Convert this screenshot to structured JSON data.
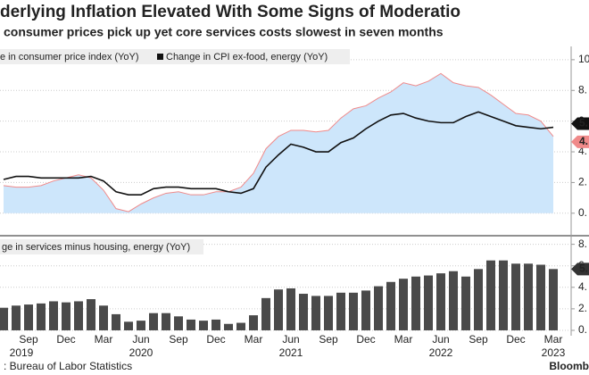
{
  "header": {
    "title": "derlying Inflation Elevated With Some Signs of Moderatio",
    "subtitle": "consumer prices pick up yet core services costs slowest in seven months"
  },
  "footer": {
    "source": ": Bureau of Labor Statistics",
    "brand": "Bloomb"
  },
  "chart_data": [
    {
      "type": "line",
      "series": [
        {
          "name": "e in consumer price index (YoY)",
          "color": "#f08a8a",
          "fill": "#cde6fb",
          "end_label": "4.",
          "values": [
            1.8,
            1.7,
            1.7,
            1.8,
            2.1,
            2.3,
            2.5,
            2.3,
            1.5,
            0.3,
            0.1,
            0.6,
            1.0,
            1.3,
            1.4,
            1.2,
            1.2,
            1.4,
            1.4,
            1.7,
            2.6,
            4.2,
            5.0,
            5.4,
            5.4,
            5.3,
            5.4,
            6.2,
            6.8,
            7.0,
            7.5,
            7.9,
            8.5,
            8.3,
            8.6,
            9.1,
            8.5,
            8.3,
            8.2,
            7.7,
            7.1,
            6.5,
            6.4,
            6.0,
            5.0
          ]
        },
        {
          "name": "Change in CPI ex-food, energy (YoY)",
          "color": "#111111",
          "end_label": "5.",
          "values": [
            2.2,
            2.4,
            2.4,
            2.3,
            2.3,
            2.3,
            2.3,
            2.4,
            2.1,
            1.4,
            1.2,
            1.2,
            1.6,
            1.7,
            1.7,
            1.6,
            1.6,
            1.6,
            1.4,
            1.3,
            1.6,
            3.0,
            3.8,
            4.5,
            4.3,
            4.0,
            4.0,
            4.6,
            4.9,
            5.5,
            6.0,
            6.4,
            6.5,
            6.2,
            6.0,
            5.9,
            5.9,
            6.3,
            6.6,
            6.3,
            6.0,
            5.7,
            5.6,
            5.5,
            5.6
          ]
        }
      ],
      "ylim": [
        -1,
        10.4
      ],
      "yticks": [
        {
          "value": 0,
          "label": "0."
        },
        {
          "value": 2,
          "label": "2."
        },
        {
          "value": 4,
          "label": "4."
        },
        {
          "value": 6,
          "label": "6"
        },
        {
          "value": 8,
          "label": "8."
        },
        {
          "value": 10,
          "label": "10"
        }
      ],
      "grid": true
    },
    {
      "type": "bar",
      "name": "ge in services minus housing, energy (YoY)",
      "color": "#4a4a4a",
      "end_label": "5.",
      "categories": [
        null,
        null,
        "Sep",
        null,
        null,
        "Dec",
        null,
        null,
        "Mar",
        null,
        null,
        "Jun",
        null,
        null,
        "Sep",
        null,
        null,
        "Dec",
        null,
        null,
        "Mar",
        null,
        null,
        "Jun",
        null,
        null,
        "Sep",
        null,
        null,
        "Dec",
        null,
        null,
        "Mar",
        null,
        null,
        "Jun",
        null,
        null,
        "Sep",
        null,
        null,
        "Dec",
        null,
        null,
        "Mar"
      ],
      "years": [
        "2019",
        "2020",
        "2021",
        "2022",
        "2023"
      ],
      "values": [
        2.1,
        2.3,
        2.4,
        2.5,
        2.7,
        2.6,
        2.7,
        2.9,
        2.3,
        1.5,
        0.8,
        0.9,
        1.6,
        1.6,
        1.3,
        1.0,
        0.9,
        1.0,
        0.6,
        0.7,
        1.4,
        3.0,
        3.8,
        3.9,
        3.4,
        3.2,
        3.2,
        3.5,
        3.5,
        3.7,
        4.1,
        4.5,
        4.8,
        5.0,
        5.1,
        5.3,
        5.5,
        5.0,
        5.7,
        6.5,
        6.5,
        6.2,
        6.2,
        6.1,
        5.7
      ],
      "ylim": [
        -0.5,
        8.3
      ],
      "yticks": [
        {
          "value": 0,
          "label": "0."
        },
        {
          "value": 2,
          "label": "2."
        },
        {
          "value": 4,
          "label": "4."
        },
        {
          "value": 6,
          "label": "6."
        },
        {
          "value": 8,
          "label": "8."
        }
      ],
      "grid": true
    }
  ]
}
